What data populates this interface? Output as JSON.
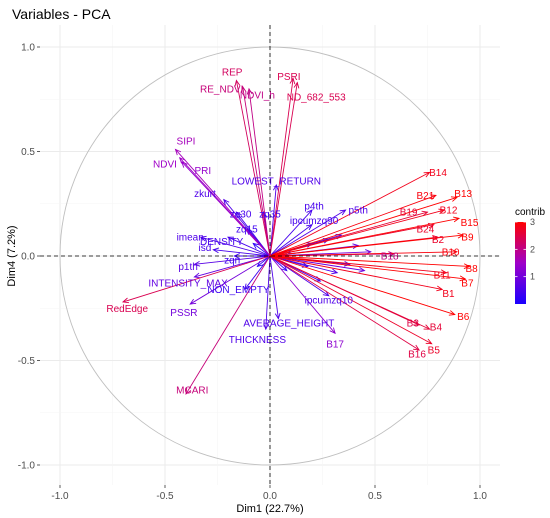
{
  "chart_data": {
    "type": "scatter",
    "subtype": "pca-variable-correlation-circle",
    "title": "Variables - PCA",
    "xlabel": "Dim1 (22.7%)",
    "ylabel": "Dim4 (7.2%)",
    "xlim": [
      -1.0,
      1.0
    ],
    "ylim": [
      -1.0,
      1.0
    ],
    "xticks": [
      "-1.0",
      "-0.5",
      "0.0",
      "0.5",
      "1.0"
    ],
    "yticks": [
      "-1.0",
      "-0.5",
      "0.0",
      "0.5",
      "1.0"
    ],
    "grid": true,
    "legend": {
      "title": "contrib",
      "placement": "right",
      "range": [
        0,
        3
      ],
      "ticks": [
        "1",
        "2",
        "3"
      ],
      "colors": [
        "#1a00ff",
        "#9f00c8",
        "#ff0000"
      ]
    },
    "variables": [
      {
        "name": "REP",
        "x": -0.16,
        "y": 0.84,
        "contrib": 2.3,
        "lx": -0.18,
        "ly": 0.88
      },
      {
        "name": "RE_NDVI",
        "x": -0.13,
        "y": 0.81,
        "contrib": 2.1,
        "lx": -0.23,
        "ly": 0.8
      },
      {
        "name": "NDVI_h",
        "x": -0.1,
        "y": 0.8,
        "contrib": 2.0,
        "lx": -0.06,
        "ly": 0.77
      },
      {
        "name": "PSRI",
        "x": 0.11,
        "y": 0.85,
        "contrib": 2.4,
        "lx": 0.09,
        "ly": 0.86
      },
      {
        "name": "ND_682_553",
        "x": 0.13,
        "y": 0.83,
        "contrib": 2.4,
        "lx": 0.22,
        "ly": 0.76
      },
      {
        "name": "SIPI",
        "x": -0.45,
        "y": 0.51,
        "contrib": 1.6,
        "lx": -0.4,
        "ly": 0.55
      },
      {
        "name": "NDVI",
        "x": -0.43,
        "y": 0.47,
        "contrib": 1.5,
        "lx": -0.5,
        "ly": 0.44
      },
      {
        "name": "PRI",
        "x": -0.42,
        "y": 0.45,
        "contrib": 1.4,
        "lx": -0.32,
        "ly": 0.41
      },
      {
        "name": "LOWEST_RETURN",
        "x": 0.03,
        "y": 0.34,
        "contrib": 0.6,
        "lx": 0.03,
        "ly": 0.36
      },
      {
        "name": "zkurt",
        "x": -0.22,
        "y": 0.27,
        "contrib": 0.6,
        "lx": -0.31,
        "ly": 0.3
      },
      {
        "name": "zq30",
        "x": -0.16,
        "y": 0.21,
        "contrib": 0.5,
        "lx": -0.14,
        "ly": 0.2
      },
      {
        "name": "zq35",
        "x": -0.03,
        "y": 0.21,
        "contrib": 0.4,
        "lx": 0.0,
        "ly": 0.2
      },
      {
        "name": "zq15",
        "x": -0.11,
        "y": 0.13,
        "contrib": 0.4,
        "lx": -0.11,
        "ly": 0.13
      },
      {
        "name": "p4th",
        "x": 0.2,
        "y": 0.22,
        "contrib": 0.5,
        "lx": 0.21,
        "ly": 0.24
      },
      {
        "name": "p5th",
        "x": 0.36,
        "y": 0.22,
        "contrib": 0.6,
        "lx": 0.42,
        "ly": 0.22
      },
      {
        "name": "ipcumzq90",
        "x": 0.2,
        "y": 0.15,
        "contrib": 0.5,
        "lx": 0.21,
        "ly": 0.17
      },
      {
        "name": "imean",
        "x": -0.33,
        "y": 0.09,
        "contrib": 0.6,
        "lx": -0.38,
        "ly": 0.09
      },
      {
        "name": "DENSITY",
        "x": -0.2,
        "y": 0.09,
        "contrib": 0.5,
        "lx": -0.23,
        "ly": 0.07
      },
      {
        "name": "isd",
        "x": -0.27,
        "y": 0.03,
        "contrib": 0.5,
        "lx": -0.31,
        "ly": 0.04
      },
      {
        "name": "zqn",
        "x": -0.17,
        "y": 0.0,
        "contrib": 0.4,
        "lx": -0.18,
        "ly": -0.02
      },
      {
        "name": "p1th",
        "x": -0.36,
        "y": -0.04,
        "contrib": 0.7,
        "lx": -0.39,
        "ly": -0.05
      },
      {
        "name": "INTENSITY_MAX",
        "x": -0.36,
        "y": -0.1,
        "contrib": 0.8,
        "lx": -0.39,
        "ly": -0.13
      },
      {
        "name": "NON_EMPTY",
        "x": -0.12,
        "y": -0.16,
        "contrib": 0.4,
        "lx": -0.15,
        "ly": -0.16
      },
      {
        "name": "RedEdge",
        "x": -0.7,
        "y": -0.22,
        "contrib": 2.4,
        "lx": -0.68,
        "ly": -0.25
      },
      {
        "name": "PSSR",
        "x": -0.38,
        "y": -0.23,
        "contrib": 1.0,
        "lx": -0.41,
        "ly": -0.27
      },
      {
        "name": "AVERAGE_HEIGHT",
        "x": 0.04,
        "y": -0.3,
        "contrib": 0.6,
        "lx": 0.09,
        "ly": -0.32
      },
      {
        "name": "THICKNESS",
        "x": -0.02,
        "y": -0.35,
        "contrib": 0.6,
        "lx": -0.06,
        "ly": -0.4
      },
      {
        "name": "ipcumzq10",
        "x": 0.28,
        "y": -0.19,
        "contrib": 0.6,
        "lx": 0.28,
        "ly": -0.21
      },
      {
        "name": "B17",
        "x": 0.31,
        "y": -0.37,
        "contrib": 1.3,
        "lx": 0.31,
        "ly": -0.42
      },
      {
        "name": "MCARI",
        "x": -0.4,
        "y": -0.66,
        "contrib": 2.1,
        "lx": -0.37,
        "ly": -0.64
      },
      {
        "name": "B14",
        "x": 0.76,
        "y": 0.4,
        "contrib": 2.8,
        "lx": 0.8,
        "ly": 0.4
      },
      {
        "name": "B21",
        "x": 0.79,
        "y": 0.29,
        "contrib": 2.9,
        "lx": 0.74,
        "ly": 0.29
      },
      {
        "name": "B13",
        "x": 0.89,
        "y": 0.28,
        "contrib": 3.0,
        "lx": 0.92,
        "ly": 0.3
      },
      {
        "name": "B19",
        "x": 0.75,
        "y": 0.21,
        "contrib": 2.6,
        "lx": 0.66,
        "ly": 0.21
      },
      {
        "name": "B12",
        "x": 0.83,
        "y": 0.22,
        "contrib": 2.8,
        "lx": 0.85,
        "ly": 0.22
      },
      {
        "name": "B15",
        "x": 0.9,
        "y": 0.18,
        "contrib": 3.0,
        "lx": 0.95,
        "ly": 0.16
      },
      {
        "name": "B24",
        "x": 0.78,
        "y": 0.15,
        "contrib": 2.7,
        "lx": 0.74,
        "ly": 0.13
      },
      {
        "name": "B2",
        "x": 0.8,
        "y": 0.09,
        "contrib": 2.7,
        "lx": 0.8,
        "ly": 0.08
      },
      {
        "name": "B9",
        "x": 0.92,
        "y": 0.1,
        "contrib": 3.0,
        "lx": 0.94,
        "ly": 0.09
      },
      {
        "name": "B10",
        "x": 0.89,
        "y": 0.02,
        "contrib": 2.9,
        "lx": 0.86,
        "ly": 0.02
      },
      {
        "name": "B18",
        "x": 0.59,
        "y": 0.01,
        "contrib": 2.0,
        "lx": 0.57,
        "ly": 0.0
      },
      {
        "name": "B8",
        "x": 0.95,
        "y": -0.05,
        "contrib": 3.0,
        "lx": 0.96,
        "ly": -0.06
      },
      {
        "name": "B11",
        "x": 0.84,
        "y": -0.08,
        "contrib": 2.8,
        "lx": 0.82,
        "ly": -0.09
      },
      {
        "name": "B7",
        "x": 0.93,
        "y": -0.11,
        "contrib": 3.0,
        "lx": 0.94,
        "ly": -0.13
      },
      {
        "name": "B1",
        "x": 0.82,
        "y": -0.16,
        "contrib": 2.8,
        "lx": 0.85,
        "ly": -0.18
      },
      {
        "name": "B6",
        "x": 0.88,
        "y": -0.28,
        "contrib": 3.0,
        "lx": 0.92,
        "ly": -0.29
      },
      {
        "name": "B3",
        "x": 0.71,
        "y": -0.33,
        "contrib": 2.5,
        "lx": 0.68,
        "ly": -0.32
      },
      {
        "name": "B4",
        "x": 0.76,
        "y": -0.35,
        "contrib": 2.6,
        "lx": 0.79,
        "ly": -0.34
      },
      {
        "name": "B5",
        "x": 0.77,
        "y": -0.42,
        "contrib": 2.7,
        "lx": 0.78,
        "ly": -0.45
      },
      {
        "name": "B16",
        "x": 0.71,
        "y": -0.45,
        "contrib": 2.5,
        "lx": 0.7,
        "ly": -0.47
      },
      {
        "name": "",
        "x": 0.2,
        "y": 0.06,
        "contrib": 0.4
      },
      {
        "name": "",
        "x": 0.28,
        "y": 0.08,
        "contrib": 0.5
      },
      {
        "name": "",
        "x": 0.34,
        "y": 0.1,
        "contrib": 0.6
      },
      {
        "name": "",
        "x": 0.42,
        "y": 0.05,
        "contrib": 0.8
      },
      {
        "name": "",
        "x": 0.48,
        "y": 0.02,
        "contrib": 1.0
      },
      {
        "name": "",
        "x": 0.38,
        "y": -0.04,
        "contrib": 0.7
      },
      {
        "name": "",
        "x": 0.32,
        "y": -0.08,
        "contrib": 0.6
      },
      {
        "name": "",
        "x": 0.24,
        "y": -0.12,
        "contrib": 0.5
      },
      {
        "name": "",
        "x": 0.18,
        "y": -0.05,
        "contrib": 0.4
      },
      {
        "name": "",
        "x": 0.45,
        "y": -0.07,
        "contrib": 0.9
      },
      {
        "name": "",
        "x": -0.08,
        "y": 0.06,
        "contrib": 0.2
      },
      {
        "name": "",
        "x": -0.06,
        "y": -0.05,
        "contrib": 0.2
      },
      {
        "name": "",
        "x": 0.1,
        "y": 0.02,
        "contrib": 0.2
      },
      {
        "name": "",
        "x": 0.08,
        "y": -0.07,
        "contrib": 0.3
      }
    ]
  }
}
